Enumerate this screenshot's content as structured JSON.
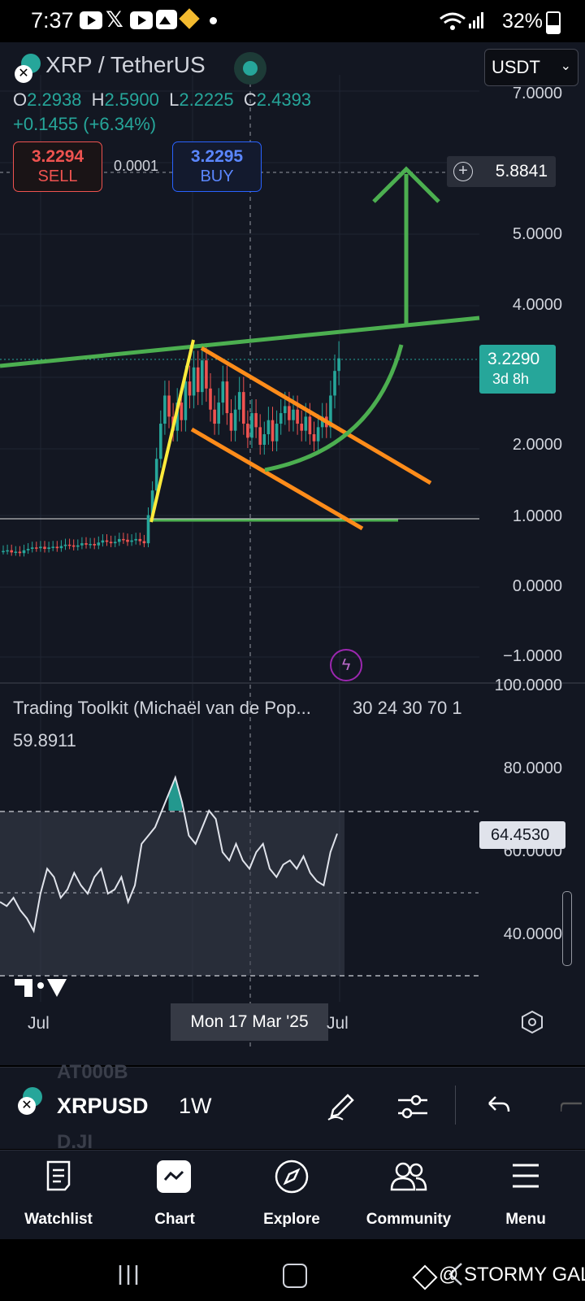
{
  "status_bar": {
    "time": "7:37",
    "battery": "32%"
  },
  "symbol_header": {
    "title": "XRP / TetherUS",
    "currency": "USDT"
  },
  "ohlc": {
    "o_label": "O",
    "o": "2.2938",
    "h_label": "H",
    "h": "2.5900",
    "l_label": "L",
    "l": "2.2225",
    "c_label": "C",
    "c": "2.4393",
    "change": "+0.1455 (+6.34%)"
  },
  "trade": {
    "sell_price": "3.2294",
    "sell_label": "SELL",
    "spread": "0.0001",
    "buy_price": "3.2295",
    "buy_label": "BUY"
  },
  "price_axis": {
    "labels": [
      "7.0000",
      "5.0000",
      "4.0000",
      "2.0000",
      "1.0000",
      "0.0000",
      "−1.0000"
    ],
    "alert_price": "5.8841",
    "current_price": "3.2290",
    "countdown": "3d 8h"
  },
  "indicator": {
    "name": "Trading Toolkit (Michaël van de Pop...",
    "params": "30 24 30 70 1",
    "value": "59.8911",
    "axis_labels": [
      "100.0000",
      "80.0000",
      "60.0000",
      "40.0000"
    ],
    "current_value": "64.4530"
  },
  "time_axis": {
    "labels": [
      "Jul",
      "Jul"
    ],
    "crosshair_date": "Mon 17 Mar '25"
  },
  "toolbar": {
    "symbol": "XRPUSD",
    "interval": "1W",
    "ghost_top": "AT000B",
    "ghost_bottom": "D.JI"
  },
  "bottom_nav": {
    "watchlist": "Watchlist",
    "chart": "Chart",
    "explore": "Explore",
    "community": "Community",
    "menu": "Menu"
  },
  "watermark": "@ STORMY GAL",
  "colors": {
    "green": "#26a69a",
    "red": "#ef5350",
    "blue": "#2962ff",
    "drawing_green": "#4caf50",
    "drawing_orange": "#ff8c1a",
    "drawing_yellow": "#ffeb3b",
    "bg": "#131722"
  },
  "chart_data": {
    "type": "candlestick",
    "symbol": "XRP / TetherUS",
    "interval": "1W",
    "y_axis": {
      "min": -1,
      "max": 7,
      "ticks": [
        -1,
        0,
        1,
        2,
        4,
        5,
        7
      ]
    },
    "last_close": 3.229,
    "prices": [
      0.49,
      0.5,
      0.47,
      0.48,
      0.46,
      0.5,
      0.52,
      0.54,
      0.53,
      0.55,
      0.52,
      0.54,
      0.55,
      0.53,
      0.56,
      0.58,
      0.57,
      0.55,
      0.57,
      0.6,
      0.58,
      0.59,
      0.57,
      0.61,
      0.64,
      0.62,
      0.6,
      0.62,
      0.66,
      0.65,
      0.62,
      0.64,
      0.66,
      0.63,
      0.6,
      1.0,
      1.35,
      1.8,
      2.3,
      2.7,
      2.4,
      2.2,
      2.6,
      2.35,
      2.9,
      2.7,
      3.1,
      2.75,
      3.2,
      2.8,
      2.5,
      2.3,
      2.6,
      2.9,
      2.45,
      2.2,
      2.5,
      2.75,
      2.3,
      2.1,
      2.45,
      2.25,
      2.0,
      2.15,
      2.35,
      2.05,
      2.3,
      2.45,
      2.55,
      2.35,
      2.5,
      2.3,
      2.2,
      2.4,
      2.15,
      2.05,
      2.25,
      2.4,
      2.25,
      2.7,
      3.05,
      3.229
    ],
    "rsi": [
      48,
      47,
      49,
      46,
      44,
      41,
      50,
      56,
      54,
      49,
      51,
      55,
      52,
      50,
      54,
      56,
      50,
      51,
      54,
      48,
      52,
      62,
      64,
      66,
      70,
      74,
      78,
      72,
      64,
      62,
      66,
      70,
      68,
      60,
      58,
      62,
      58,
      56,
      60,
      62,
      56,
      54,
      57,
      58,
      56,
      59,
      55,
      53,
      52,
      60,
      64.453
    ]
  }
}
